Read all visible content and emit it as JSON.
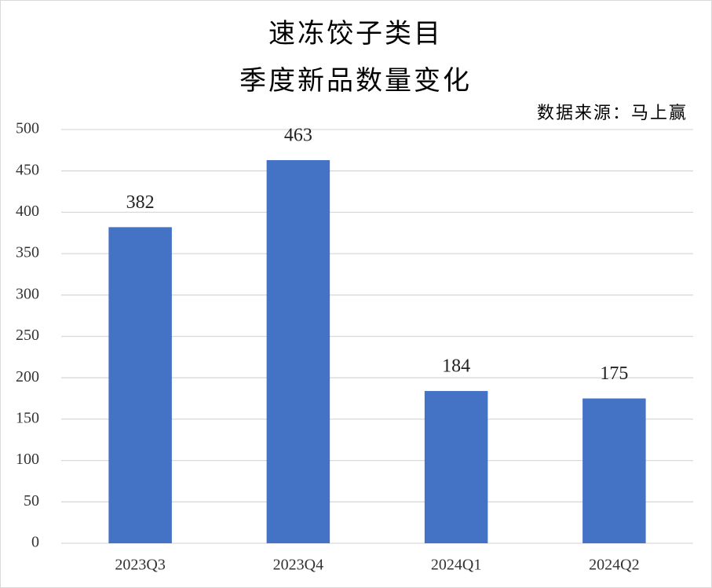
{
  "chart_data": {
    "type": "bar",
    "title": [
      "速冻饺子类目",
      "季度新品数量变化"
    ],
    "annotation": "数据来源：马上赢",
    "categories": [
      "2023Q3",
      "2023Q4",
      "2024Q1",
      "2024Q2"
    ],
    "values": [
      382,
      463,
      184,
      175
    ],
    "color": "#4472c4",
    "ylim": [
      0,
      500
    ],
    "yticks": [
      0,
      50,
      100,
      150,
      200,
      250,
      300,
      350,
      400,
      450,
      500
    ],
    "grid": true
  }
}
